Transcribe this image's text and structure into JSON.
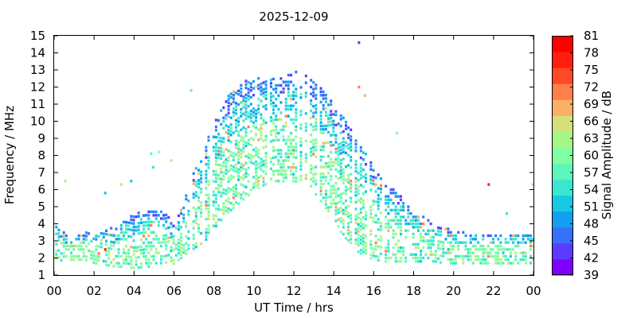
{
  "chart_data": {
    "type": "heatmap",
    "title": "2025-12-09",
    "xlabel": "UT Time / hrs",
    "ylabel": "Frequency / MHz",
    "colorbar_label": "Signal Amplitude / dB",
    "xlim": [
      0,
      24
    ],
    "ylim": [
      1,
      15
    ],
    "x_ticks": [
      "00",
      "02",
      "04",
      "06",
      "08",
      "10",
      "12",
      "14",
      "16",
      "18",
      "20",
      "22",
      "00"
    ],
    "y_ticks": [
      "1",
      "2",
      "3",
      "4",
      "5",
      "6",
      "7",
      "8",
      "9",
      "10",
      "11",
      "12",
      "13",
      "14",
      "15"
    ],
    "colorbar": {
      "ticks": [
        "39",
        "42",
        "45",
        "48",
        "51",
        "54",
        "57",
        "60",
        "63",
        "66",
        "69",
        "72",
        "75",
        "78",
        "81"
      ],
      "colors": [
        "#7f00ff",
        "#5a3cff",
        "#3770fa",
        "#139ff0",
        "#16c8e2",
        "#3ae6d0",
        "#5ef6ba",
        "#82ffa2",
        "#a6f687",
        "#d4e07a",
        "#fcb066",
        "#ff7f4c",
        "#ff4a28",
        "#ff1f10",
        "#ff0000"
      ]
    },
    "grid": false,
    "observations": {
      "time_bins_hrs": [
        0.0,
        0.5,
        1.0,
        1.5,
        2.0,
        2.5,
        3.0,
        3.5,
        4.0,
        4.5,
        5.0,
        5.5,
        6.0,
        6.5,
        7.0,
        7.5,
        8.0,
        8.5,
        9.0,
        9.5,
        10.0,
        10.5,
        11.0,
        11.5,
        12.0,
        12.5,
        13.0,
        13.5,
        14.0,
        14.5,
        15.0,
        15.5,
        16.0,
        16.5,
        17.0,
        17.5,
        18.0,
        18.5,
        19.0,
        19.5,
        20.0,
        20.5,
        21.0,
        21.5,
        22.0,
        22.5,
        23.0,
        23.5
      ],
      "max_freq_mhz": [
        3.9,
        3.5,
        3.5,
        3.5,
        3.6,
        3.7,
        3.8,
        4.3,
        4.7,
        4.9,
        4.9,
        4.7,
        4.0,
        5.5,
        7.2,
        8.5,
        10.2,
        11.2,
        12.0,
        12.4,
        12.5,
        12.6,
        12.5,
        12.6,
        12.9,
        12.8,
        12.3,
        11.8,
        10.8,
        10.2,
        9.5,
        8.4,
        7.2,
        6.3,
        6.0,
        5.4,
        4.8,
        4.4,
        4.0,
        3.8,
        3.6,
        3.5,
        3.5,
        3.5,
        3.5,
        3.5,
        3.5,
        3.5
      ],
      "min_freq_mhz": [
        1.8,
        1.9,
        1.9,
        1.9,
        1.7,
        1.6,
        1.5,
        1.5,
        1.4,
        1.5,
        1.5,
        1.5,
        1.7,
        2.2,
        2.6,
        3.0,
        3.8,
        4.5,
        5.0,
        5.5,
        6.0,
        6.3,
        6.5,
        6.5,
        6.5,
        6.3,
        5.8,
        5.0,
        4.3,
        3.0,
        2.5,
        2.1,
        1.9,
        1.8,
        1.8,
        1.8,
        1.8,
        1.8,
        1.8,
        1.7,
        1.7,
        1.7,
        1.7,
        1.7,
        1.7,
        1.7,
        1.7,
        1.7
      ]
    },
    "scattered_points": [
      {
        "t": 15.2,
        "f": 14.6,
        "db": 42
      },
      {
        "t": 21.7,
        "f": 6.3,
        "db": 78
      },
      {
        "t": 15.2,
        "f": 12.0,
        "db": 72
      },
      {
        "t": 15.5,
        "f": 11.5,
        "db": 70
      },
      {
        "t": 6.8,
        "f": 11.8,
        "db": 57
      },
      {
        "t": 2.5,
        "f": 2.5,
        "db": 78
      },
      {
        "t": 2.5,
        "f": 5.8,
        "db": 50
      },
      {
        "t": 3.3,
        "f": 6.3,
        "db": 66
      },
      {
        "t": 3.8,
        "f": 6.5,
        "db": 51
      },
      {
        "t": 0.5,
        "f": 6.5,
        "db": 63
      },
      {
        "t": 4.8,
        "f": 8.1,
        "db": 57
      },
      {
        "t": 5.2,
        "f": 8.2,
        "db": 60
      },
      {
        "t": 5.8,
        "f": 7.7,
        "db": 63
      },
      {
        "t": 4.9,
        "f": 7.3,
        "db": 54
      },
      {
        "t": 17.1,
        "f": 9.3,
        "db": 60
      },
      {
        "t": 22.6,
        "f": 4.6,
        "db": 54
      },
      {
        "t": 23.9,
        "f": 6.3,
        "db": 63
      }
    ]
  }
}
